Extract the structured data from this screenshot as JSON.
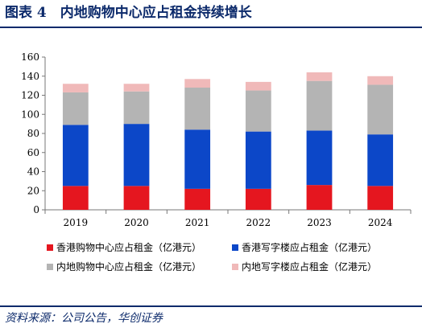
{
  "figure": {
    "title": "图表 4　内地购物中心应占租金持续增长",
    "source": "资料来源：公司公告，华创证券"
  },
  "chart_data": {
    "type": "bar",
    "stacked": true,
    "categories": [
      "2019",
      "2020",
      "2021",
      "2022",
      "2023",
      "2024"
    ],
    "series": [
      {
        "name": "香港购物中心应占租金（亿港元）",
        "color": "#e5161f",
        "values": [
          25,
          25,
          22,
          22,
          26,
          25
        ]
      },
      {
        "name": "香港写字楼应占租金（亿港元）",
        "color": "#0c47c8",
        "values": [
          64,
          65,
          62,
          60,
          57,
          54
        ]
      },
      {
        "name": "内地购物中心应占租金（亿港元）",
        "color": "#b4b4b4",
        "values": [
          34,
          34,
          44,
          43,
          52,
          52
        ]
      },
      {
        "name": "内地写字楼应占租金（亿港元）",
        "color": "#f0b9b9",
        "values": [
          9,
          8,
          9,
          9,
          9,
          9
        ]
      }
    ],
    "ylim": [
      0,
      160
    ],
    "yticks": [
      0,
      20,
      40,
      60,
      80,
      100,
      120,
      140,
      160
    ],
    "grid": false,
    "legend_position": "bottom",
    "xlabel": "",
    "ylabel": ""
  }
}
